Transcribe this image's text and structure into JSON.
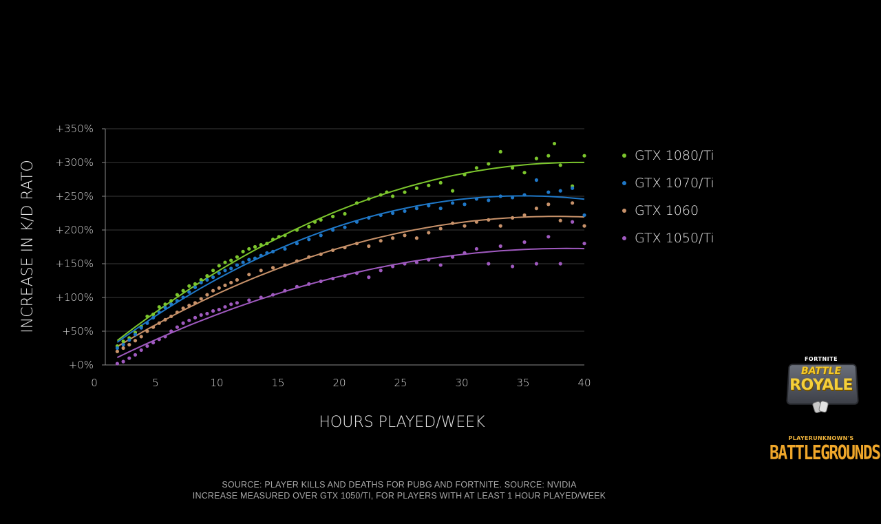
{
  "colors": {
    "background": "#000000",
    "grid": "#3a3a3a",
    "axis": "#8a8a8a",
    "text": "#dcdcdc"
  },
  "footnotes": {
    "line1": "SOURCE: PLAYER KILLS AND DEATHS FOR PUBG AND FORTNITE. SOURCE: NVIDIA",
    "line2": "INCREASE MEASURED OVER GTX 1050/TI, FOR PLAYERS WITH AT LEAST 1 HOUR PLAYED/WEEK"
  },
  "logos": {
    "fortnite_small": "FORTNITE",
    "fortnite_battle": "BATTLE",
    "fortnite_royale": "ROYALE",
    "pubg_small": "PLAYERUNKNOWN'S",
    "pubg_big": "BATTLEGROUNDS"
  },
  "chart_data": {
    "type": "scatter",
    "xlabel": "HOURS PLAYED/WEEK",
    "ylabel": "INCREASE IN K/D RATO",
    "xlim": [
      0,
      40
    ],
    "ylim": [
      0,
      350
    ],
    "x_ticks": [
      0,
      5,
      10,
      15,
      20,
      25,
      30,
      35,
      40
    ],
    "x_tick_labels": [
      "0",
      "5",
      "10",
      "15",
      "20",
      "25",
      "30",
      "35",
      "40"
    ],
    "y_ticks": [
      0,
      50,
      100,
      150,
      200,
      250,
      300,
      350
    ],
    "y_tick_labels": [
      "+0%",
      "+50%",
      "+100%",
      "+150%",
      "+200%",
      "+250%",
      "+300%",
      "+350%"
    ],
    "grid": true,
    "legend_position": "right",
    "trendlines": true,
    "series": [
      {
        "name": "GTX 1080/Ti",
        "color": "#7cc62d",
        "points": [
          [
            1,
            28
          ],
          [
            1.5,
            35
          ],
          [
            2,
            40
          ],
          [
            2.5,
            48
          ],
          [
            3,
            57
          ],
          [
            3.5,
            72
          ],
          [
            4,
            75
          ],
          [
            4.5,
            86
          ],
          [
            5,
            90
          ],
          [
            5.5,
            95
          ],
          [
            6,
            104
          ],
          [
            6.5,
            110
          ],
          [
            7,
            117
          ],
          [
            7.5,
            120
          ],
          [
            8,
            126
          ],
          [
            8.5,
            132
          ],
          [
            9,
            140
          ],
          [
            9.5,
            147
          ],
          [
            10,
            152
          ],
          [
            10.5,
            155
          ],
          [
            11,
            160
          ],
          [
            11.5,
            168
          ],
          [
            12,
            172
          ],
          [
            12.5,
            175
          ],
          [
            13,
            178
          ],
          [
            13.5,
            180
          ],
          [
            14,
            186
          ],
          [
            14.5,
            190
          ],
          [
            15,
            192
          ],
          [
            16,
            200
          ],
          [
            17,
            205
          ],
          [
            17.5,
            212
          ],
          [
            18,
            215
          ],
          [
            19,
            220
          ],
          [
            20,
            224
          ],
          [
            21,
            240
          ],
          [
            22,
            246
          ],
          [
            23,
            252
          ],
          [
            23.5,
            256
          ],
          [
            24,
            250
          ],
          [
            25,
            256
          ],
          [
            26,
            262
          ],
          [
            27,
            266
          ],
          [
            28,
            270
          ],
          [
            29,
            258
          ],
          [
            30,
            282
          ],
          [
            31,
            292
          ],
          [
            32,
            298
          ],
          [
            33,
            316
          ],
          [
            34,
            292
          ],
          [
            35,
            285
          ],
          [
            36,
            306
          ],
          [
            37,
            310
          ],
          [
            37.5,
            328
          ],
          [
            38,
            296
          ],
          [
            39,
            265
          ],
          [
            40,
            310
          ]
        ]
      },
      {
        "name": "GTX 1070/Ti",
        "color": "#1f78c8",
        "points": [
          [
            1,
            25
          ],
          [
            1.5,
            30
          ],
          [
            2,
            37
          ],
          [
            2.5,
            45
          ],
          [
            3,
            55
          ],
          [
            3.5,
            62
          ],
          [
            4,
            70
          ],
          [
            4.5,
            78
          ],
          [
            5,
            85
          ],
          [
            5.5,
            90
          ],
          [
            6,
            95
          ],
          [
            6.5,
            100
          ],
          [
            7,
            108
          ],
          [
            7.5,
            115
          ],
          [
            8,
            122
          ],
          [
            8.5,
            126
          ],
          [
            9,
            130
          ],
          [
            9.5,
            136
          ],
          [
            10,
            140
          ],
          [
            10.5,
            143
          ],
          [
            11,
            148
          ],
          [
            11.5,
            152
          ],
          [
            12,
            156
          ],
          [
            12.5,
            158
          ],
          [
            13,
            162
          ],
          [
            13.5,
            166
          ],
          [
            14,
            168
          ],
          [
            15,
            172
          ],
          [
            16,
            180
          ],
          [
            17,
            186
          ],
          [
            18,
            192
          ],
          [
            19,
            200
          ],
          [
            20,
            204
          ],
          [
            21,
            212
          ],
          [
            22,
            218
          ],
          [
            23,
            222
          ],
          [
            24,
            225
          ],
          [
            25,
            228
          ],
          [
            26,
            232
          ],
          [
            27,
            236
          ],
          [
            28,
            232
          ],
          [
            29,
            240
          ],
          [
            30,
            238
          ],
          [
            31,
            246
          ],
          [
            32,
            244
          ],
          [
            33,
            250
          ],
          [
            34,
            248
          ],
          [
            35,
            252
          ],
          [
            36,
            274
          ],
          [
            37,
            256
          ],
          [
            38,
            258
          ],
          [
            39,
            262
          ],
          [
            40,
            222
          ]
        ]
      },
      {
        "name": "GTX 1060",
        "color": "#c8926a",
        "points": [
          [
            1,
            20
          ],
          [
            1.5,
            25
          ],
          [
            2,
            30
          ],
          [
            2.5,
            36
          ],
          [
            3,
            42
          ],
          [
            3.5,
            50
          ],
          [
            4,
            56
          ],
          [
            4.5,
            62
          ],
          [
            5,
            67
          ],
          [
            5.5,
            72
          ],
          [
            6,
            78
          ],
          [
            6.5,
            84
          ],
          [
            7,
            88
          ],
          [
            7.5,
            92
          ],
          [
            8,
            98
          ],
          [
            8.5,
            104
          ],
          [
            9,
            110
          ],
          [
            9.5,
            114
          ],
          [
            10,
            118
          ],
          [
            10.5,
            122
          ],
          [
            11,
            126
          ],
          [
            12,
            134
          ],
          [
            13,
            140
          ],
          [
            14,
            144
          ],
          [
            15,
            148
          ],
          [
            16,
            154
          ],
          [
            17,
            160
          ],
          [
            18,
            164
          ],
          [
            19,
            170
          ],
          [
            20,
            174
          ],
          [
            21,
            180
          ],
          [
            22,
            176
          ],
          [
            23,
            184
          ],
          [
            24,
            188
          ],
          [
            25,
            192
          ],
          [
            26,
            188
          ],
          [
            27,
            196
          ],
          [
            28,
            202
          ],
          [
            29,
            210
          ],
          [
            30,
            206
          ],
          [
            31,
            212
          ],
          [
            32,
            215
          ],
          [
            33,
            206
          ],
          [
            34,
            218
          ],
          [
            35,
            222
          ],
          [
            36,
            232
          ],
          [
            37,
            238
          ],
          [
            38,
            214
          ],
          [
            39,
            240
          ],
          [
            40,
            206
          ]
        ]
      },
      {
        "name": "GTX 1050/Ti",
        "color": "#a05ac0",
        "points": [
          [
            1,
            2
          ],
          [
            1.5,
            5
          ],
          [
            2,
            10
          ],
          [
            2.5,
            15
          ],
          [
            3,
            22
          ],
          [
            3.5,
            28
          ],
          [
            4,
            33
          ],
          [
            4.5,
            38
          ],
          [
            5,
            42
          ],
          [
            5.5,
            50
          ],
          [
            6,
            56
          ],
          [
            6.5,
            62
          ],
          [
            7,
            66
          ],
          [
            7.5,
            70
          ],
          [
            8,
            74
          ],
          [
            8.5,
            76
          ],
          [
            9,
            80
          ],
          [
            9.5,
            82
          ],
          [
            10,
            86
          ],
          [
            10.5,
            90
          ],
          [
            11,
            92
          ],
          [
            12,
            96
          ],
          [
            13,
            100
          ],
          [
            14,
            104
          ],
          [
            15,
            110
          ],
          [
            16,
            116
          ],
          [
            17,
            120
          ],
          [
            18,
            124
          ],
          [
            19,
            128
          ],
          [
            20,
            132
          ],
          [
            21,
            136
          ],
          [
            22,
            130
          ],
          [
            23,
            140
          ],
          [
            24,
            146
          ],
          [
            25,
            150
          ],
          [
            26,
            152
          ],
          [
            27,
            156
          ],
          [
            28,
            148
          ],
          [
            29,
            160
          ],
          [
            30,
            166
          ],
          [
            31,
            172
          ],
          [
            32,
            150
          ],
          [
            33,
            176
          ],
          [
            34,
            146
          ],
          [
            35,
            182
          ],
          [
            36,
            150
          ],
          [
            37,
            190
          ],
          [
            38,
            150
          ],
          [
            39,
            212
          ],
          [
            40,
            180
          ]
        ]
      }
    ]
  }
}
